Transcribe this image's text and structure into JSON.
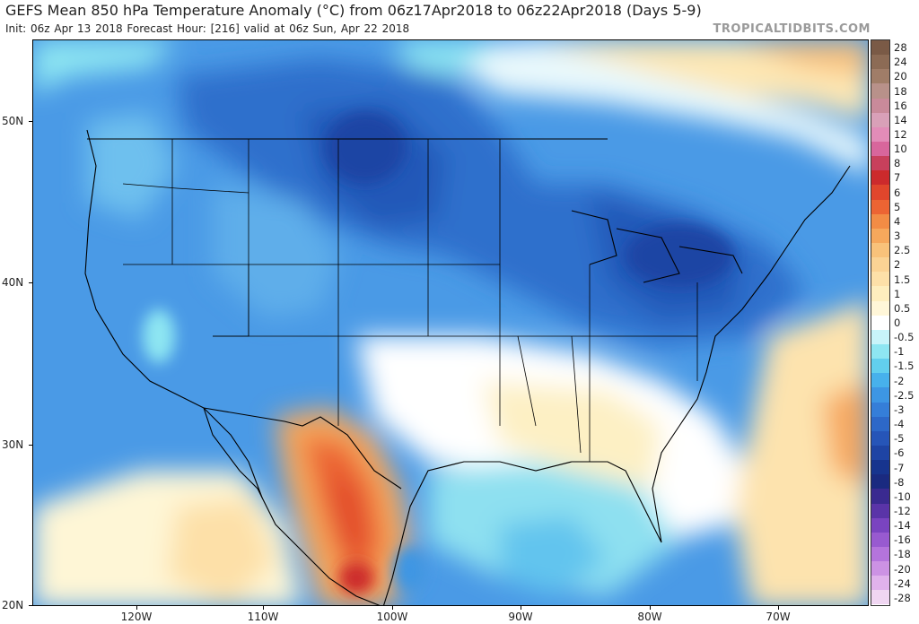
{
  "header": {
    "title": "GEFS Mean 850 hPa Temperature Anomaly (°C) from 06z17Apr2018 to 06z22Apr2018 (Days 5-9)",
    "subtitle": "Init: 06z Apr 13 2018   Forecast Hour: [216]   valid at 06z Sun, Apr 22 2018",
    "brand": "TROPICALTIDBITS.COM"
  },
  "map": {
    "lat_labels": [
      "50N",
      "40N",
      "30N",
      "20N"
    ],
    "lon_labels": [
      "120W",
      "110W",
      "100W",
      "90W",
      "80W",
      "70W"
    ]
  },
  "colorbar": {
    "labels": [
      "28",
      "24",
      "20",
      "18",
      "16",
      "14",
      "12",
      "10",
      "8",
      "7",
      "6",
      "5",
      "4",
      "3",
      "2.5",
      "2",
      "1.5",
      "1",
      "0.5",
      "0",
      "-0.5",
      "-1",
      "-1.5",
      "-2",
      "-2.5",
      "-3",
      "-4",
      "-5",
      "-6",
      "-7",
      "-8",
      "-10",
      "-12",
      "-14",
      "-16",
      "-18",
      "-20",
      "-24",
      "-28"
    ],
    "colors": [
      "#7a5a46",
      "#8c6b55",
      "#a07d68",
      "#b8918a",
      "#c98a9a",
      "#d9a0b8",
      "#e28cb8",
      "#d8669c",
      "#c8405c",
      "#cc2a2c",
      "#e0462c",
      "#ec6433",
      "#f28c45",
      "#f6a85c",
      "#f9c27a",
      "#fbd394",
      "#fde0a8",
      "#feeebe",
      "#fff6d8",
      "#ffffff",
      "#c8f4fa",
      "#8ee6f2",
      "#62cfee",
      "#47b1ec",
      "#3d96e4",
      "#357ed8",
      "#2d68c8",
      "#2655b8",
      "#1e44a4",
      "#17348e",
      "#1a2a80",
      "#3a2a90",
      "#5a34a8",
      "#7a44c0",
      "#985ad0",
      "#b474dc",
      "#cc92e4",
      "#e0b2ec",
      "#f0d6f2"
    ]
  }
}
